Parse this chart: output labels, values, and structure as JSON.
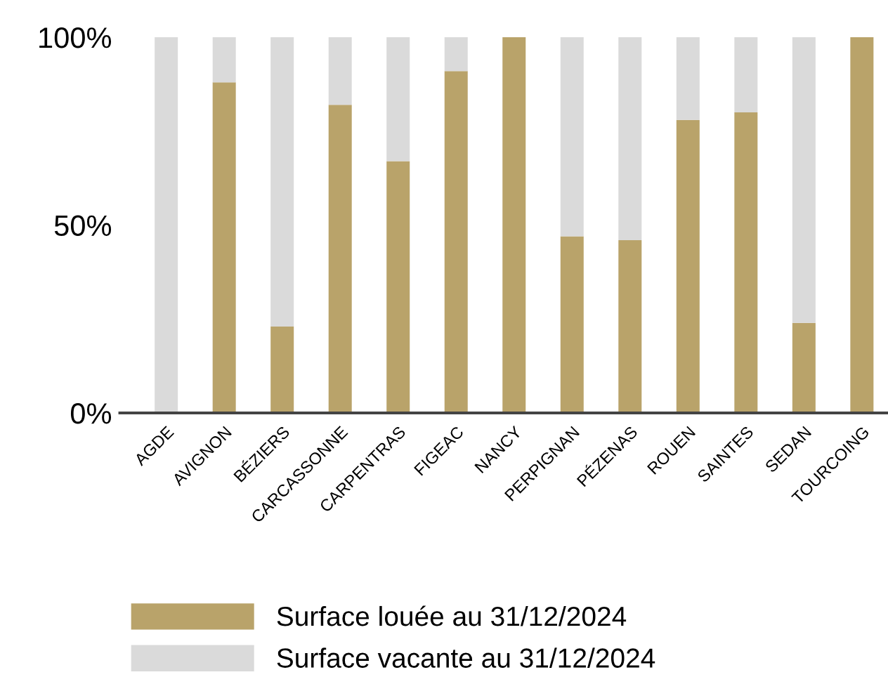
{
  "chart_data": {
    "type": "bar",
    "stacked": true,
    "categories": [
      "AGDE",
      "AVIGNON",
      "BÉZIERS",
      "CARCASSONNE",
      "CARPENTRAS",
      "FIGEAC",
      "NANCY",
      "PERPIGNAN",
      "PÉZENAS",
      "ROUEN",
      "SAINTES",
      "SEDAN",
      "TOURCOING"
    ],
    "series": [
      {
        "name": "Surface louée au 31/12/2024",
        "color": "#b9a36a",
        "values": [
          0,
          88,
          23,
          82,
          67,
          91,
          100,
          47,
          46,
          78,
          80,
          24,
          100
        ]
      },
      {
        "name": "Surface vacante au 31/12/2024",
        "color": "#dadada",
        "values": [
          100,
          12,
          77,
          18,
          33,
          9,
          0,
          53,
          54,
          22,
          20,
          76,
          0
        ]
      }
    ],
    "ylim": [
      0,
      100
    ],
    "yticks": [
      {
        "value": 0,
        "label": "0%"
      },
      {
        "value": 50,
        "label": "50%"
      },
      {
        "value": 100,
        "label": "100%"
      }
    ],
    "grid": false,
    "legend": "bottom"
  }
}
